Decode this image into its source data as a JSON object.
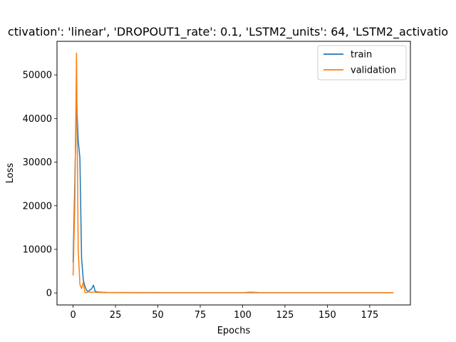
{
  "chart_data": {
    "type": "line",
    "title": "ctivation': 'linear', 'DROPOUT1_rate': 0.1, 'LSTM2_units': 64, 'LSTM2_activatio",
    "xlabel": "Epochs",
    "ylabel": "Loss",
    "xlim": [
      -9.5,
      199
    ],
    "ylim": [
      -2750,
      57700
    ],
    "xticks": [
      0,
      25,
      50,
      75,
      100,
      125,
      150,
      175
    ],
    "yticks": [
      0,
      10000,
      20000,
      30000,
      40000,
      50000
    ],
    "grid": false,
    "legend_position": "top-right",
    "series": [
      {
        "name": "train",
        "color": "#1f77b4",
        "points": [
          [
            0,
            7000
          ],
          [
            1,
            25000
          ],
          [
            2,
            45000
          ],
          [
            3,
            35000
          ],
          [
            4,
            31000
          ],
          [
            5,
            8000
          ],
          [
            6,
            3000
          ],
          [
            7,
            1500
          ],
          [
            8,
            600
          ],
          [
            9,
            300
          ],
          [
            10,
            700
          ],
          [
            11,
            1000
          ],
          [
            12,
            1800
          ],
          [
            13,
            400
          ],
          [
            14,
            250
          ],
          [
            15,
            200
          ],
          [
            17,
            150
          ],
          [
            20,
            100
          ],
          [
            30,
            80
          ],
          [
            60,
            70
          ],
          [
            100,
            60
          ],
          [
            105,
            150
          ],
          [
            110,
            60
          ],
          [
            120,
            70
          ],
          [
            140,
            60
          ],
          [
            189,
            60
          ]
        ]
      },
      {
        "name": "validation",
        "color": "#ff7f0e",
        "points": [
          [
            0,
            4000
          ],
          [
            1,
            20000
          ],
          [
            2,
            55000
          ],
          [
            3,
            10000
          ],
          [
            4,
            2000
          ],
          [
            5,
            1000
          ],
          [
            6,
            2500
          ],
          [
            7,
            100
          ],
          [
            8,
            80
          ],
          [
            9,
            300
          ],
          [
            10,
            120
          ],
          [
            12,
            200
          ],
          [
            15,
            100
          ],
          [
            20,
            60
          ],
          [
            40,
            40
          ],
          [
            60,
            40
          ],
          [
            100,
            40
          ],
          [
            140,
            40
          ],
          [
            189,
            40
          ]
        ]
      }
    ]
  }
}
